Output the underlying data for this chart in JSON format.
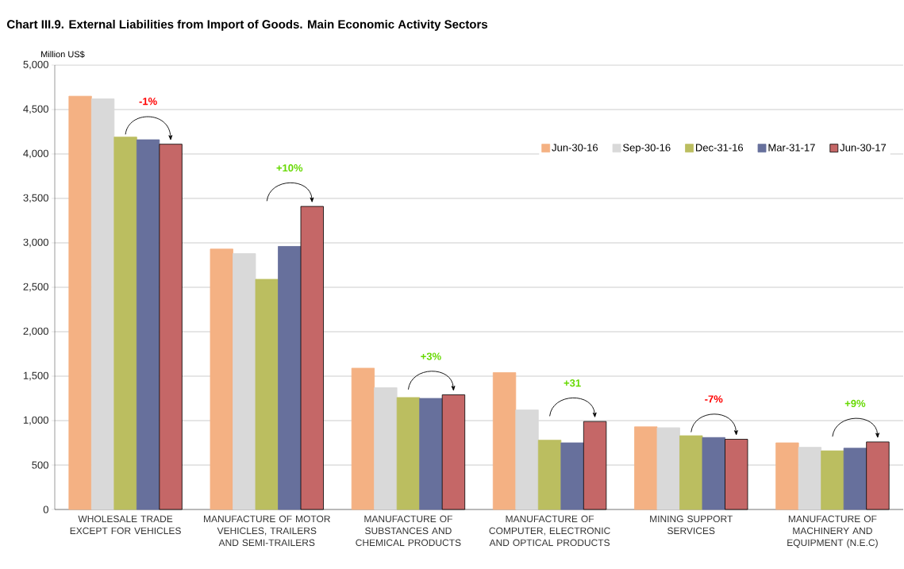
{
  "chart_data": {
    "type": "bar",
    "title": "Chart III.9. External Liabilities from Import of Goods. Main Economic Activity Sectors",
    "ylabel": "Million US$",
    "categories": [
      "WHOLESALE TRADE EXCEPT FOR VEHICLES",
      "MANUFACTURE OF MOTOR VEHICLES, TRAILERS AND SEMI-TRAILERS",
      "MANUFACTURE OF SUBSTANCES AND CHEMICAL PRODUCTS",
      "MANUFACTURE OF COMPUTER, ELECTRONIC AND OPTICAL PRODUCTS",
      "MINING SUPPORT SERVICES",
      "MANUFACTURE OF MACHINERY AND EQUIPMENT (N.E.C)"
    ],
    "series": [
      {
        "name": "Jun-30-16",
        "color": "#f4b183",
        "values": [
          4650,
          2930,
          1590,
          1540,
          930,
          750
        ]
      },
      {
        "name": "Sep-30-16",
        "color": "#d9d9d9",
        "values": [
          4620,
          2880,
          1370,
          1120,
          920,
          700
        ]
      },
      {
        "name": "Dec-31-16",
        "color": "#bbbe60",
        "values": [
          4190,
          2590,
          1260,
          780,
          830,
          660
        ]
      },
      {
        "name": "Mar-31-17",
        "color": "#67709c",
        "values": [
          4160,
          2960,
          1250,
          750,
          810,
          690
        ]
      },
      {
        "name": "Jun-30-17",
        "color": "#c56767",
        "values": [
          4110,
          3410,
          1290,
          990,
          790,
          760
        ]
      }
    ],
    "ylim": [
      0,
      5000
    ],
    "yticks": [
      0,
      500,
      {
        "value": 1000,
        "label": "1,000"
      },
      {
        "value": 1500,
        "label": "1,500"
      },
      {
        "value": 2000,
        "label": "2,000"
      },
      {
        "value": 2500,
        "label": "2,500"
      },
      {
        "value": 3000,
        "label": "3,000"
      },
      {
        "value": 3500,
        "label": "3,500"
      },
      {
        "value": 4000,
        "label": "4,000"
      },
      {
        "value": 4500,
        "label": "4,500"
      },
      {
        "value": 5000,
        "label": "5,000"
      }
    ],
    "grid": "y",
    "legend": "top right",
    "annotations": [
      "-1%",
      "+10%",
      "+3%",
      "+31",
      "-7%",
      "+9%"
    ]
  }
}
